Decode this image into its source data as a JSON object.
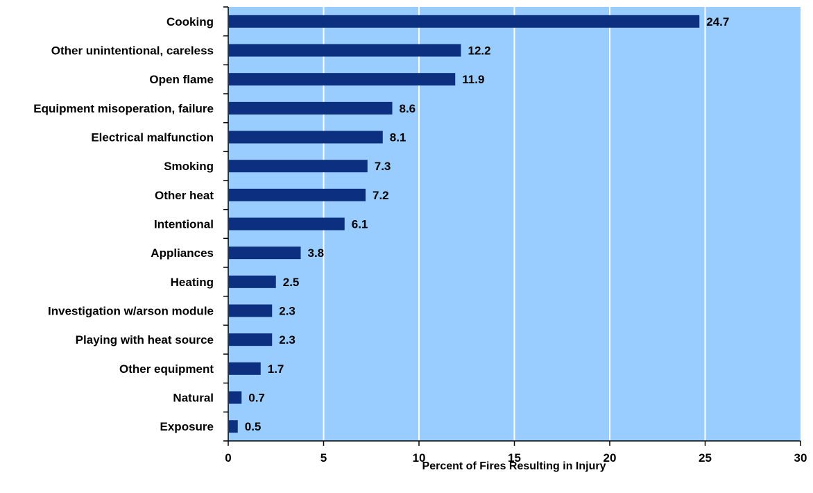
{
  "chart_data": {
    "type": "bar",
    "orientation": "horizontal",
    "categories": [
      "Cooking",
      "Other unintentional, careless",
      "Open flame",
      "Equipment misoperation, failure",
      "Electrical malfunction",
      "Smoking",
      "Other heat",
      "Intentional",
      "Appliances",
      "Heating",
      "Investigation w/arson module",
      "Playing with heat source",
      "Other equipment",
      "Natural",
      "Exposure"
    ],
    "values": [
      24.7,
      12.2,
      11.9,
      8.6,
      8.1,
      7.3,
      7.2,
      6.1,
      3.8,
      2.5,
      2.3,
      2.3,
      1.7,
      0.7,
      0.5
    ],
    "value_labels": [
      "24.7",
      "12.2",
      "11.9",
      "8.6",
      "8.1",
      "7.3",
      "7.2",
      "6.1",
      "3.8",
      "2.5",
      "2.3",
      "2.3",
      "1.7",
      "0.7",
      "0.5"
    ],
    "xticks": [
      "0",
      "5",
      "10",
      "15",
      "20",
      "25",
      "30"
    ],
    "xlim": [
      0,
      30
    ],
    "xlabel": "Percent of Fires Resulting in Injury",
    "ylabel": "",
    "title": "",
    "grid": "vertical",
    "legend": "none",
    "colors": {
      "bar": "#0c2f7f",
      "plot_background": "#99ccff",
      "gridline": "#ffffff",
      "axis": "#000000"
    }
  }
}
